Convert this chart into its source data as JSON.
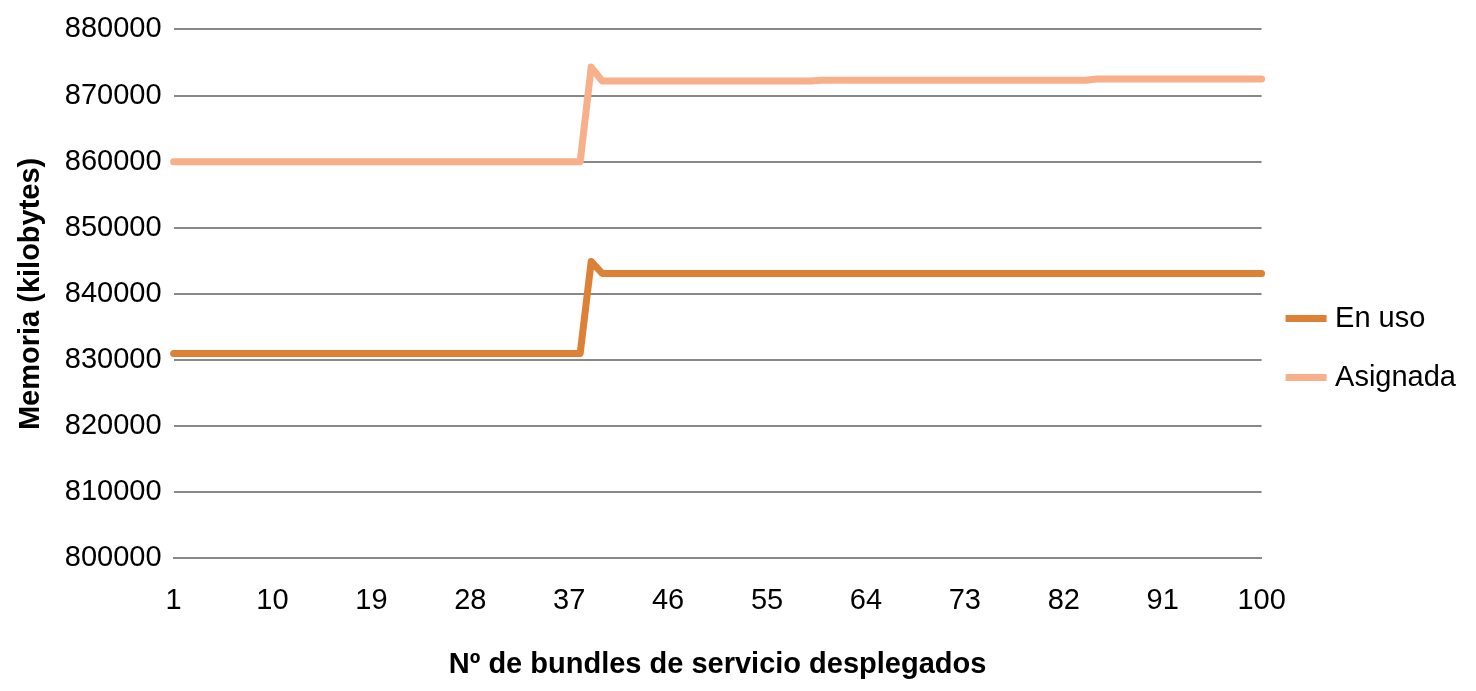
{
  "chart_data": {
    "type": "line",
    "xlabel": "Nº de bundles de servicio desplegados",
    "ylabel": "Memoria (kilobytes)",
    "categories": [
      "1",
      null,
      null,
      null,
      null,
      null,
      null,
      null,
      null,
      "10",
      null,
      null,
      null,
      null,
      null,
      null,
      null,
      null,
      "19",
      null,
      null,
      null,
      null,
      null,
      null,
      null,
      null,
      "28",
      null,
      null,
      null,
      null,
      null,
      null,
      null,
      null,
      "37",
      null,
      null,
      null,
      null,
      null,
      null,
      null,
      null,
      "46",
      null,
      null,
      null,
      null,
      null,
      null,
      null,
      null,
      "55",
      null,
      null,
      null,
      null,
      null,
      null,
      null,
      null,
      "64",
      null,
      null,
      null,
      null,
      null,
      null,
      null,
      null,
      "73",
      null,
      null,
      null,
      null,
      null,
      null,
      null,
      null,
      "82",
      null,
      null,
      null,
      null,
      null,
      null,
      null,
      null,
      "91",
      null,
      null,
      null,
      null,
      null,
      null,
      null,
      null,
      "100"
    ],
    "series": [
      {
        "name": "En uso",
        "color": "#dd8136",
        "values": [
          831000,
          831000,
          831000,
          831000,
          831000,
          831000,
          831000,
          831000,
          831000,
          831000,
          831000,
          831000,
          831000,
          831000,
          831000,
          831000,
          831000,
          831000,
          831000,
          831000,
          831000,
          831000,
          831000,
          831000,
          831000,
          831000,
          831000,
          831000,
          831000,
          831000,
          831000,
          831000,
          831000,
          831000,
          831000,
          831000,
          831000,
          831000,
          844900,
          843100,
          843100,
          843100,
          843100,
          843100,
          843100,
          843100,
          843100,
          843100,
          843100,
          843100,
          843100,
          843100,
          843100,
          843100,
          843100,
          843100,
          843100,
          843100,
          843100,
          843100,
          843100,
          843100,
          843100,
          843100,
          843100,
          843100,
          843100,
          843100,
          843100,
          843100,
          843100,
          843100,
          843100,
          843100,
          843100,
          843100,
          843100,
          843100,
          843100,
          843100,
          843100,
          843100,
          843100,
          843100,
          843100,
          843100,
          843100,
          843100,
          843100,
          843100,
          843100,
          843100,
          843100,
          843100,
          843100,
          843100,
          843100,
          843100,
          843100,
          843100
        ]
      },
      {
        "name": "Asignada",
        "color": "#f7b08a",
        "values": [
          860000,
          860000,
          860000,
          860000,
          860000,
          860000,
          860000,
          860000,
          860000,
          860000,
          860000,
          860000,
          860000,
          860000,
          860000,
          860000,
          860000,
          860000,
          860000,
          860000,
          860000,
          860000,
          860000,
          860000,
          860000,
          860000,
          860000,
          860000,
          860000,
          860000,
          860000,
          860000,
          860000,
          860000,
          860000,
          860000,
          860000,
          860000,
          874300,
          872200,
          872200,
          872200,
          872200,
          872200,
          872200,
          872200,
          872200,
          872200,
          872200,
          872200,
          872200,
          872200,
          872200,
          872200,
          872200,
          872200,
          872200,
          872200,
          872200,
          872300,
          872300,
          872300,
          872300,
          872300,
          872300,
          872300,
          872300,
          872300,
          872300,
          872300,
          872300,
          872300,
          872300,
          872300,
          872300,
          872300,
          872300,
          872300,
          872300,
          872300,
          872300,
          872300,
          872300,
          872300,
          872500,
          872500,
          872500,
          872500,
          872500,
          872500,
          872500,
          872500,
          872500,
          872500,
          872500,
          872500,
          872500,
          872500,
          872500,
          872500
        ]
      }
    ],
    "ylim": [
      800000,
      880000
    ],
    "yticks": [
      800000,
      810000,
      820000,
      830000,
      840000,
      850000,
      860000,
      870000,
      880000
    ],
    "grid": "y",
    "legend": "right",
    "marker": "none",
    "line_style": "solid"
  }
}
